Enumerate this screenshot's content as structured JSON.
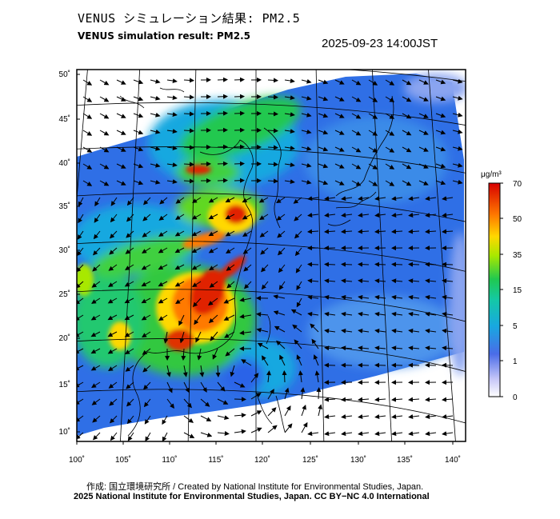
{
  "header": {
    "title_jp": "VENUS シミュレーション結果: PM2.5",
    "title_en": "VENUS simulation result: PM2.5",
    "timestamp": "2025-09-23 14:00JST"
  },
  "map": {
    "lat_labels": [
      "50˚",
      "45˚",
      "40˚",
      "35˚",
      "30˚",
      "25˚",
      "20˚",
      "15˚",
      "10˚"
    ],
    "lat_values": [
      50,
      45,
      40,
      35,
      30,
      25,
      20,
      15,
      10
    ],
    "lon_labels": [
      "100˚",
      "105˚",
      "110˚",
      "115˚",
      "120˚",
      "125˚",
      "130˚",
      "135˚",
      "140˚"
    ],
    "lon_values": [
      100,
      105,
      110,
      115,
      120,
      125,
      130,
      135,
      140
    ],
    "lat_range": [
      9,
      51
    ],
    "lon_range": [
      100,
      141
    ]
  },
  "colorbar": {
    "unit": "μg/m³",
    "tick_labels": [
      "70",
      "50",
      "35",
      "15",
      "5",
      "1",
      "0"
    ],
    "colors": [
      "#e00000",
      "#ff7a00",
      "#ffd800",
      "#a8e800",
      "#14c870",
      "#18a8e0",
      "#2c64e8",
      "#8aa4f0",
      "#ffffff"
    ]
  },
  "footer": {
    "credit_line": "作成: 国立環境研究所 / Created by National Institute for Environmental Studies, Japan.",
    "license_line": "2025 National Institute for Environmental Studies, Japan. CC BY−NC 4.0 International"
  }
}
